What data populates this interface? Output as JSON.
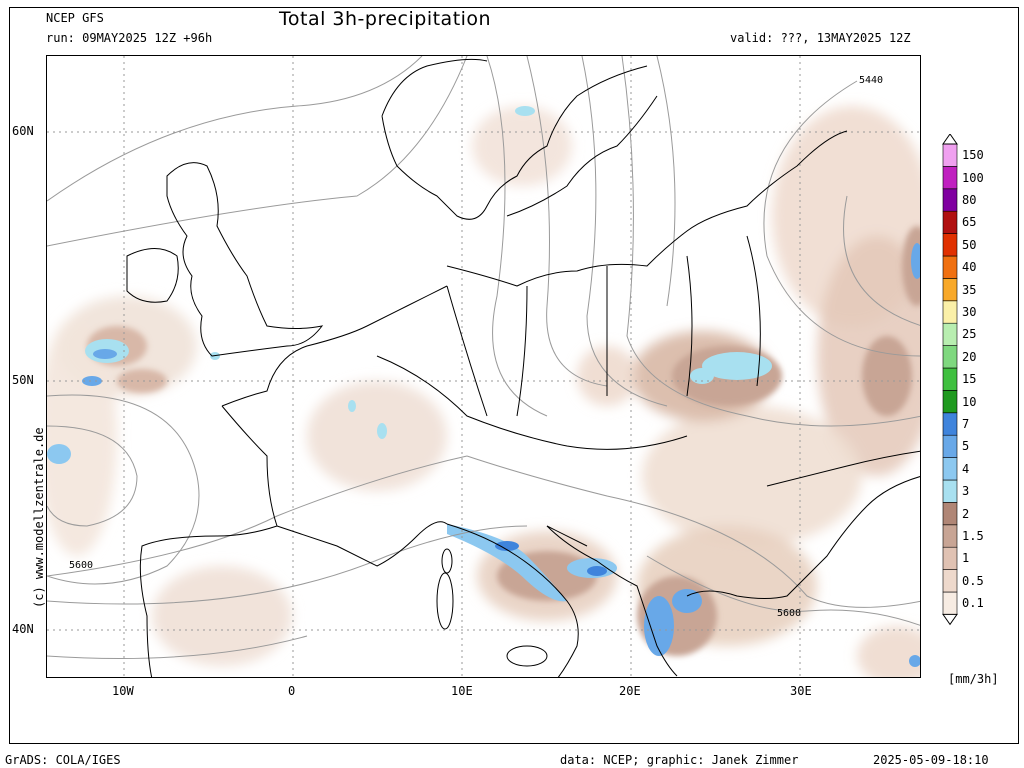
{
  "header": {
    "model": "NCEP GFS",
    "run": "run: 09MAY2025 12Z +96h",
    "title": "Total 3h-precipitation",
    "valid": "valid: ???, 13MAY2025 12Z"
  },
  "side_credit": "(c) www.modellzentrale.de",
  "map": {
    "lat_labels": [
      "60N",
      "50N",
      "40N"
    ],
    "lon_labels": [
      "10W",
      "0",
      "10E",
      "20E",
      "30E"
    ],
    "contour_labels": [
      "5440",
      "5600",
      "5600"
    ]
  },
  "legend": {
    "unit": "[mm/3h]",
    "levels": [
      "0.1",
      "0.5",
      "1",
      "1.5",
      "2",
      "3",
      "4",
      "5",
      "7",
      "10",
      "15",
      "20",
      "25",
      "30",
      "35",
      "40",
      "50",
      "65",
      "80",
      "100",
      "150"
    ],
    "colors": [
      "#f7ece3",
      "#eed9cc",
      "#e0c2b3",
      "#c8a595",
      "#b08676",
      "#a8e0f0",
      "#8cc8f0",
      "#68a8e8",
      "#3f84dc",
      "#1f9a1f",
      "#3fc03f",
      "#7fd87f",
      "#b8eeb0",
      "#fbf0a8",
      "#f8a828",
      "#f07010",
      "#e03000",
      "#b01010",
      "#8000a0",
      "#c020c0",
      "#f0a0f0"
    ]
  },
  "footer": {
    "left": "GrADS: COLA/IGES",
    "middle": "data: NCEP; graphic: Janek Zimmer",
    "right": "2025-05-09-18:10"
  }
}
